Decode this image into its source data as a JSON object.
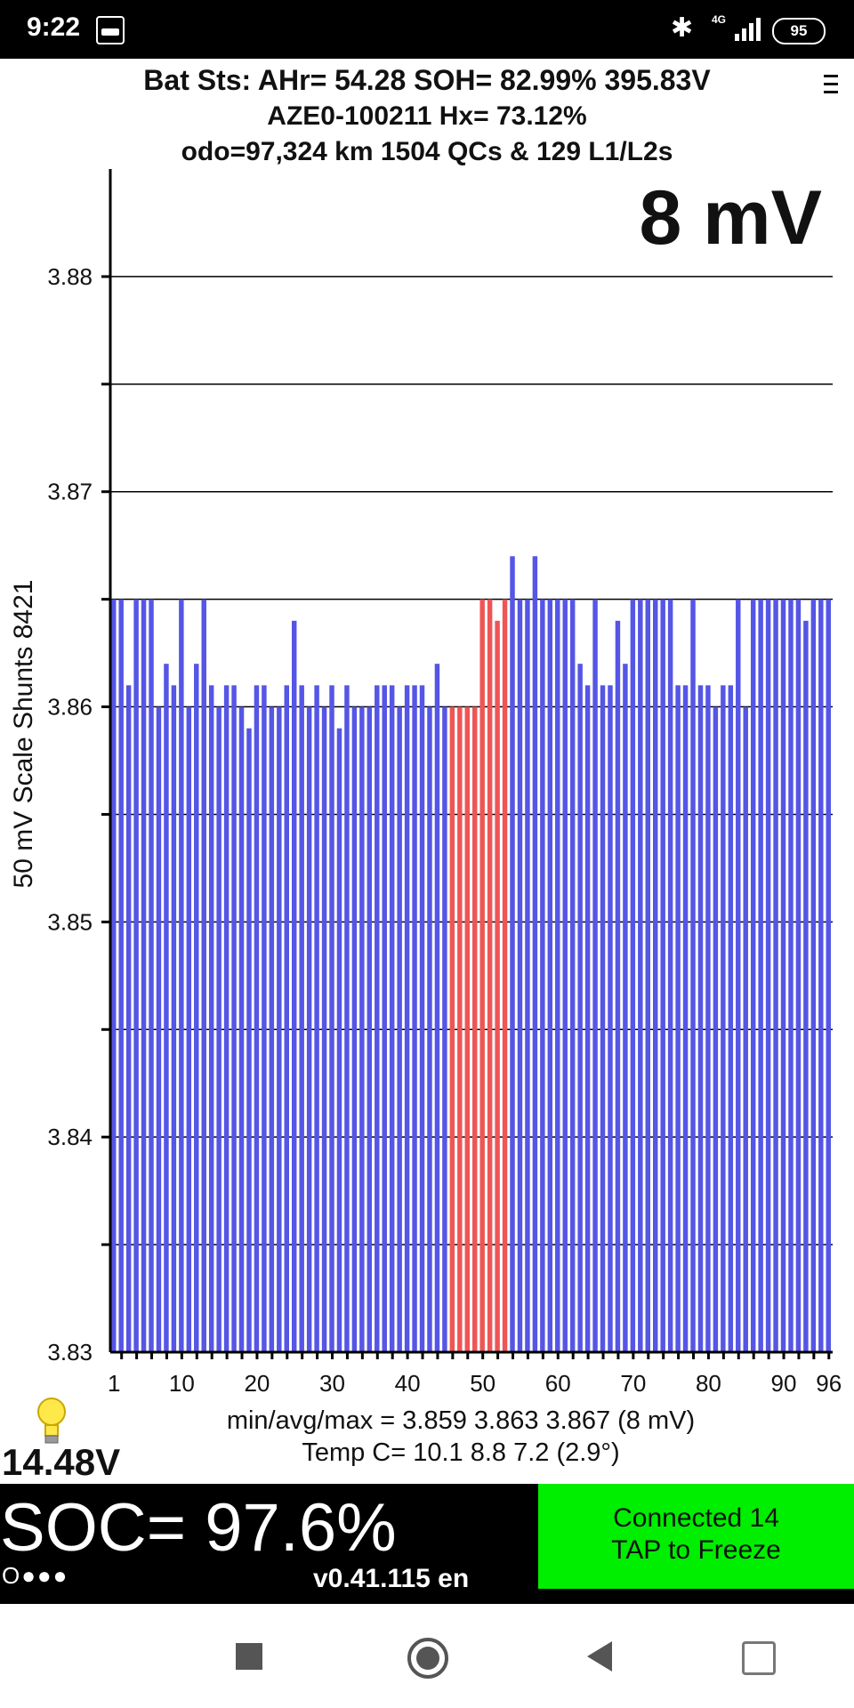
{
  "status_bar": {
    "time": "9:22",
    "network": "4G",
    "battery": "95"
  },
  "header": {
    "line1": "Bat Sts:  AHr= 54.28  SOH= 82.99%   395.83V",
    "line2": "AZE0-100211   Hx= 73.12%",
    "line3": "odo=97,324 km 1504 QCs & 129 L1/L2s"
  },
  "chart_data": {
    "type": "bar",
    "spread_label": "8 mV",
    "ylabel": "50 mV Scale   Shunts 8421",
    "ylim": [
      3.83,
      3.885
    ],
    "y_ticks": [
      3.88,
      3.87,
      3.86,
      3.85,
      3.84,
      3.83
    ],
    "x_ticks": [
      1,
      10,
      20,
      30,
      40,
      50,
      60,
      70,
      80,
      90,
      96
    ],
    "categories": [
      1,
      2,
      3,
      4,
      5,
      6,
      7,
      8,
      9,
      10,
      11,
      12,
      13,
      14,
      15,
      16,
      17,
      18,
      19,
      20,
      21,
      22,
      23,
      24,
      25,
      26,
      27,
      28,
      29,
      30,
      31,
      32,
      33,
      34,
      35,
      36,
      37,
      38,
      39,
      40,
      41,
      42,
      43,
      44,
      45,
      46,
      47,
      48,
      49,
      50,
      51,
      52,
      53,
      54,
      55,
      56,
      57,
      58,
      59,
      60,
      61,
      62,
      63,
      64,
      65,
      66,
      67,
      68,
      69,
      70,
      71,
      72,
      73,
      74,
      75,
      76,
      77,
      78,
      79,
      80,
      81,
      82,
      83,
      84,
      85,
      86,
      87,
      88,
      89,
      90,
      91,
      92,
      93,
      94,
      95,
      96
    ],
    "values": [
      3.865,
      3.865,
      3.861,
      3.865,
      3.865,
      3.865,
      3.86,
      3.862,
      3.861,
      3.865,
      3.86,
      3.862,
      3.865,
      3.861,
      3.86,
      3.861,
      3.861,
      3.86,
      3.859,
      3.861,
      3.861,
      3.86,
      3.86,
      3.861,
      3.864,
      3.861,
      3.86,
      3.861,
      3.86,
      3.861,
      3.859,
      3.861,
      3.86,
      3.86,
      3.86,
      3.861,
      3.861,
      3.861,
      3.86,
      3.861,
      3.861,
      3.861,
      3.86,
      3.862,
      3.86,
      3.86,
      3.86,
      3.86,
      3.86,
      3.865,
      3.865,
      3.864,
      3.865,
      3.867,
      3.865,
      3.865,
      3.867,
      3.865,
      3.865,
      3.865,
      3.865,
      3.865,
      3.862,
      3.861,
      3.865,
      3.861,
      3.861,
      3.864,
      3.862,
      3.865,
      3.865,
      3.865,
      3.865,
      3.865,
      3.865,
      3.861,
      3.861,
      3.865,
      3.861,
      3.861,
      3.86,
      3.861,
      3.861,
      3.865,
      3.86,
      3.865,
      3.865,
      3.865,
      3.865,
      3.865,
      3.865,
      3.865,
      3.864,
      3.865,
      3.865,
      3.865
    ],
    "shunt_cells": [
      46,
      47,
      48,
      49,
      50,
      51,
      52,
      53
    ],
    "colors": {
      "normal": "#5555e6",
      "shunt": "#ee5555"
    },
    "stats_line": "min/avg/max = 3.859 3.863 3.867  (8 mV)",
    "temp_line": "Temp C= 10.1  8.8  7.2  (2.9°)"
  },
  "pack_voltage": "14.48V",
  "footer": {
    "soc": "SOC= 97.6%",
    "dots": "O●●●",
    "version": "v0.41.115 en",
    "connect_line1": "Connected 14",
    "connect_line2": "TAP to Freeze",
    "connect_color": "#00ee00"
  }
}
